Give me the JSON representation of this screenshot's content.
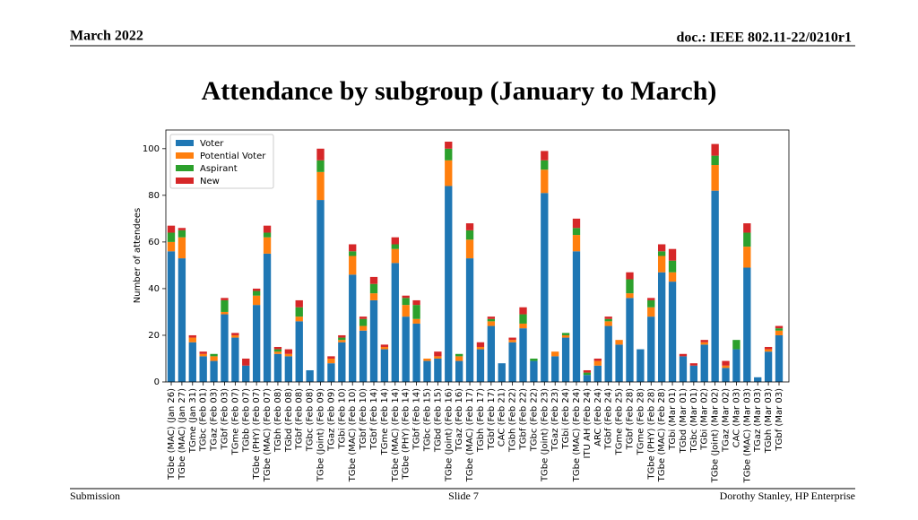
{
  "header": {
    "left": "March 2022",
    "right": "doc.: IEEE 802.11-22/0210r1"
  },
  "title": "Attendance by subgroup (January to March)",
  "footer": {
    "left": "Submission",
    "center": "Slide 7",
    "right": "Dorothy Stanley, HP Enterprise"
  },
  "chart_data": {
    "type": "bar",
    "stacked": true,
    "ylabel": "Number of attendees",
    "categories": [
      "TGbe (MAC) (Jan 26)",
      "TGbe (MAC) (Jan 27)",
      "TGme (Jan 31)",
      "TGbc (Feb 01)",
      "TGaz (Feb 03)",
      "TGbf (Feb 03)",
      "TGme (Feb 07)",
      "TGbb (Feb 07)",
      "TGbe (PHY) (Feb 07)",
      "TGbe (MAC) (Feb 07)",
      "TGbh (Feb 08)",
      "TGbd (Feb 08)",
      "TGbf (Feb 08)",
      "TGbc (Feb 08)",
      "TGbe (Joint) (Feb 09)",
      "TGaz (Feb 09)",
      "TGbi (Feb 10)",
      "TGbe (MAC) (Feb 10)",
      "TGbf (Feb 10)",
      "TGbf (Feb 14)",
      "TGme (Feb 14)",
      "TGbe (MAC) (Feb 14)",
      "TGbe (PHY) (Feb 14)",
      "TGbf (Feb 14)",
      "TGbc (Feb 15)",
      "TGbd (Feb 15)",
      "TGbe (Joint) (Feb 16)",
      "TGaz (Feb 16)",
      "TGbe (MAC) (Feb 17)",
      "TGbh (Feb 17)",
      "TGbf (Feb 17)",
      "CAC (Feb 21)",
      "TGbh (Feb 22)",
      "TGbf (Feb 22)",
      "TGbc (Feb 22)",
      "TGbe (Joint) (Feb 23)",
      "TGaz (Feb 23)",
      "TGbi (Feb 24)",
      "TGbe (MAC) (Feb 24)",
      "ITU AH (Feb 24)",
      "ARC (Feb 24)",
      "TGbf (Feb 24)",
      "TGme (Feb 25)",
      "TGbf (Feb 28)",
      "TGme (Feb 28)",
      "TGbe (PHY) (Feb 28)",
      "TGbe (MAC) (Feb 28)",
      "TGbi (Mar 01)",
      "TGbd (Mar 01)",
      "TGbc (Mar 01)",
      "TGbi (Mar 02)",
      "TGbe (Joint) (Mar 02)",
      "TGaz (Mar 02)",
      "CAC (Mar 03)",
      "TGbe (MAC) (Mar 03)",
      "TGaz (Mar 03)",
      "TGbh (Mar 03)",
      "TGbf (Mar 03)"
    ],
    "series": [
      {
        "name": "Voter",
        "color": "#1f77b4",
        "values": [
          56,
          53,
          17,
          11,
          9,
          29,
          19,
          7,
          33,
          55,
          12,
          11,
          26,
          5,
          78,
          8,
          17,
          46,
          22,
          35,
          14,
          51,
          28,
          25,
          9,
          10,
          84,
          9,
          53,
          14,
          24,
          8,
          17,
          23,
          9,
          81,
          11,
          19,
          56,
          3,
          7,
          24,
          16,
          36,
          14,
          28,
          47,
          43,
          11,
          7,
          16,
          82,
          6,
          14,
          49,
          2,
          13,
          20
        ]
      },
      {
        "name": "Potential Voter",
        "color": "#ff7f0e",
        "values": [
          4,
          9,
          2,
          1,
          2,
          1,
          1,
          0,
          4,
          7,
          1,
          1,
          2,
          0,
          12,
          2,
          1,
          8,
          2,
          3,
          1,
          6,
          5,
          2,
          1,
          1,
          11,
          2,
          8,
          1,
          2,
          0,
          1,
          2,
          0,
          10,
          2,
          1,
          7,
          0,
          2,
          2,
          2,
          2,
          0,
          4,
          7,
          4,
          0,
          0,
          1,
          11,
          1,
          0,
          9,
          0,
          1,
          2
        ]
      },
      {
        "name": "Aspirant",
        "color": "#2ca02c",
        "values": [
          4,
          3,
          0,
          0,
          1,
          5,
          0,
          0,
          2,
          2,
          1,
          0,
          4,
          0,
          5,
          0,
          1,
          2,
          3,
          4,
          0,
          2,
          3,
          6,
          0,
          0,
          5,
          1,
          4,
          0,
          1,
          0,
          0,
          4,
          1,
          4,
          0,
          1,
          3,
          1,
          0,
          1,
          0,
          6,
          0,
          3,
          2,
          5,
          0,
          0,
          0,
          4,
          0,
          4,
          6,
          0,
          0,
          1
        ]
      },
      {
        "name": "New",
        "color": "#d62728",
        "values": [
          3,
          1,
          1,
          1,
          0,
          1,
          1,
          3,
          1,
          3,
          1,
          2,
          3,
          0,
          5,
          1,
          1,
          3,
          1,
          3,
          1,
          3,
          1,
          2,
          0,
          2,
          3,
          0,
          3,
          2,
          1,
          0,
          1,
          3,
          0,
          4,
          0,
          0,
          4,
          1,
          1,
          1,
          0,
          3,
          0,
          1,
          3,
          5,
          1,
          1,
          1,
          5,
          2,
          0,
          4,
          0,
          1,
          1
        ]
      }
    ],
    "ylim": [
      0,
      108
    ],
    "yticks": [
      0,
      20,
      40,
      60,
      80,
      100
    ],
    "legend": "upper left"
  }
}
